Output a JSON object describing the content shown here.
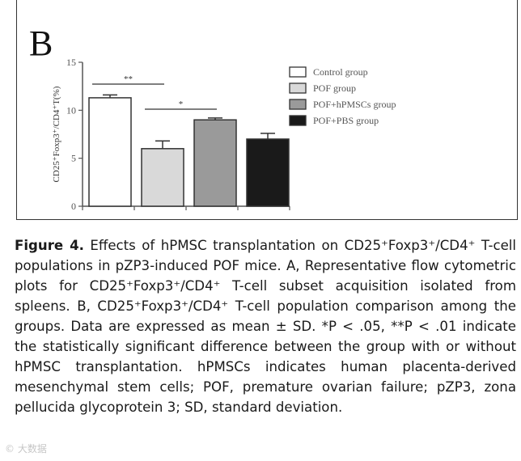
{
  "panel_label": "B",
  "chart_data": {
    "type": "bar",
    "categories": [
      "Control group",
      "POF group",
      "POF+hPMSCs group",
      "POF+PBS group"
    ],
    "values": [
      11.3,
      6.0,
      9.0,
      7.0
    ],
    "errors": [
      0.3,
      0.8,
      0.2,
      0.6
    ],
    "colors": [
      "#ffffff",
      "#d9d9d9",
      "#9a9a9a",
      "#1a1a1a"
    ],
    "ylabel": "CD25⁺Foxp3⁺/CD4⁺T(%)",
    "ylim": [
      0,
      15
    ],
    "yticks": [
      0,
      5,
      10,
      15
    ],
    "xticks": 5,
    "legend": [
      "Control group",
      "POF group",
      "POF+hPMSCs group",
      "POF+PBS group"
    ],
    "legend_position": "top-right",
    "grid": false,
    "significance": [
      {
        "from": 0,
        "to": 1,
        "label": "**"
      },
      {
        "from": 1,
        "to": 2,
        "label": "*"
      }
    ]
  },
  "caption": {
    "figure_label": "Figure 4.",
    "text": "Effects of hPMSC transplantation on CD25⁺Foxp3⁺/CD4⁺ T-cell populations in pZP3-induced POF mice. A, Representative flow cytometric plots for CD25⁺Foxp3⁺/CD4⁺ T-cell subset acquisition isolated from spleens. B, CD25⁺Foxp3⁺/CD4⁺ T-cell population comparison among the groups. Data are expressed as mean ± SD. *P < .05, **P < .01 indicate the statistically significant difference between the group with or without hPMSC transplantation. hPMSCs indicates human placenta-derived mesenchymal stem cells; POF, premature ovarian failure; pZP3, zona pellucida glycoprotein 3; SD, standard deviation."
  },
  "watermark": "© 大数据"
}
